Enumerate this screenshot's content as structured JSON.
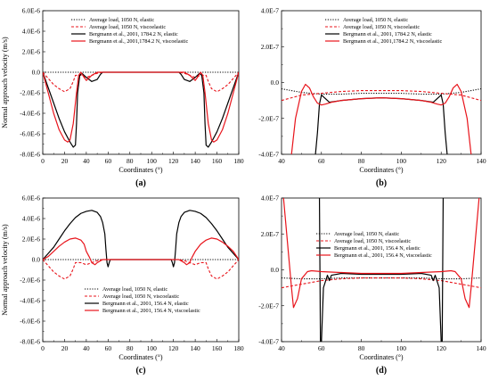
{
  "chart_data": [
    {
      "panel": "(a)",
      "type": "line",
      "xlabel": "Coordinates (°)",
      "ylabel": "Normal approach velocity (m/s)",
      "xlim": [
        0,
        180
      ],
      "ylim": [
        -8e-06,
        6e-06
      ],
      "xticks": [
        "0",
        "20",
        "40",
        "60",
        "80",
        "100",
        "120",
        "140",
        "160",
        "180"
      ],
      "yticks": [
        "6.0E-6",
        "4.0E-6",
        "2.0E-6",
        "0.0",
        "-2.0E-6",
        "-4.0E-6",
        "-6.0E-6",
        "-8.0E-6"
      ],
      "legend_position": "top-right",
      "series": [
        {
          "name": "Average load, 1050 N, elastic",
          "color": "#000000",
          "dash": "dotted",
          "x": [
            0,
            20,
            40,
            60,
            80,
            100,
            120,
            140,
            160,
            180
          ],
          "y": [
            0,
            0,
            0,
            0,
            0,
            0,
            0,
            0,
            0,
            0
          ]
        },
        {
          "name": "Average load, 1050 N, viscoelastic",
          "color": "#e8141b",
          "dash": "dashed",
          "x": [
            0,
            5,
            10,
            15,
            20,
            25,
            28,
            30,
            35,
            40,
            45,
            50,
            55,
            60,
            65,
            70,
            110,
            115,
            120,
            125,
            130,
            135,
            140,
            145,
            150,
            152,
            155,
            160,
            165,
            170,
            175,
            180
          ],
          "y": [
            0,
            -6e-07,
            -1.2e-06,
            -1.6e-06,
            -1.9e-06,
            -1.6e-06,
            -9e-07,
            -3e-07,
            -3e-07,
            -5e-07,
            -3e-07,
            -1e-07,
            0,
            0,
            0,
            0,
            0,
            0,
            0,
            0,
            -1e-07,
            -3e-07,
            -5e-07,
            -3e-07,
            -3e-07,
            -9e-07,
            -1.6e-06,
            -1.9e-06,
            -1.6e-06,
            -1.2e-06,
            -6e-07,
            0
          ]
        },
        {
          "name": "Bergmann et al., 2001, 1784.2 N, elastic",
          "color": "#000000",
          "dash": "solid",
          "x": [
            0,
            5,
            10,
            15,
            20,
            25,
            28,
            30,
            31,
            32,
            34,
            36,
            40,
            45,
            50,
            53,
            55,
            60,
            120,
            125,
            127,
            130,
            135,
            140,
            144,
            146,
            148,
            149,
            150,
            152,
            155,
            160,
            165,
            170,
            175,
            180
          ],
          "y": [
            0,
            -1.5e-06,
            -3e-06,
            -4.5e-06,
            -5.8e-06,
            -6.8e-06,
            -7.3e-06,
            -7.1e-06,
            -5e-06,
            -2e-06,
            -3e-07,
            -1e-07,
            -5e-07,
            -9e-07,
            -7e-07,
            -2e-07,
            0,
            0,
            0,
            0,
            -2e-07,
            -7e-07,
            -9e-07,
            -5e-07,
            -1e-07,
            -3e-07,
            -2e-06,
            -5e-06,
            -7.1e-06,
            -7.3e-06,
            -6.8e-06,
            -5.8e-06,
            -4.5e-06,
            -3e-06,
            -1.5e-06,
            0
          ]
        },
        {
          "name": "Bergmann et al., 2001,1784.2 N, viscoelastic",
          "color": "#e8141b",
          "dash": "solid",
          "x": [
            0,
            5,
            10,
            15,
            20,
            23,
            25,
            28,
            31,
            33,
            35,
            38,
            40,
            45,
            50,
            55,
            60,
            120,
            125,
            130,
            135,
            140,
            142,
            145,
            147,
            149,
            152,
            155,
            157,
            160,
            165,
            170,
            175,
            180
          ],
          "y": [
            0,
            -2e-06,
            -4e-06,
            -5.6e-06,
            -6.6e-06,
            -6.8e-06,
            -6.6e-06,
            -5e-06,
            -2e-06,
            -3e-07,
            0,
            -5e-07,
            -8e-07,
            -3e-07,
            0,
            0,
            0,
            0,
            0,
            0,
            -3e-07,
            -8e-07,
            -5e-07,
            0,
            -3e-07,
            -2e-06,
            -5e-06,
            -6.6e-06,
            -6.8e-06,
            -6.6e-06,
            -5.6e-06,
            -4e-06,
            -2e-06,
            0
          ]
        }
      ]
    },
    {
      "panel": "(b)",
      "type": "line",
      "xlabel": "Coordinates (°)",
      "ylabel": "",
      "xlim": [
        40,
        140
      ],
      "ylim": [
        -4e-07,
        4e-07
      ],
      "xticks": [
        "40",
        "60",
        "80",
        "100",
        "120",
        "140"
      ],
      "yticks": [
        "4.0E-7",
        "2.0E-7",
        "0.0",
        "-2.0E-7",
        "-4.0E-7"
      ],
      "legend_position": "top-right",
      "series": [
        {
          "name": "Average load, 1050 N, elastic",
          "color": "#000000",
          "dash": "dotted",
          "x": [
            40,
            45,
            50,
            60,
            70,
            80,
            90,
            100,
            110,
            120,
            130,
            135,
            140
          ],
          "y": [
            -3.5e-08,
            -4.5e-08,
            -5.5e-08,
            -6.5e-08,
            -6.5e-08,
            -6e-08,
            -6e-08,
            -6e-08,
            -6.5e-08,
            -6.5e-08,
            -5.5e-08,
            -4.5e-08,
            -3.5e-08
          ]
        },
        {
          "name": "Average load, 1050 N, viscoelastic",
          "color": "#e8141b",
          "dash": "dashed",
          "x": [
            40,
            45,
            50,
            60,
            70,
            80,
            90,
            100,
            110,
            120,
            130,
            135,
            140
          ],
          "y": [
            -1e-07,
            -8.5e-08,
            -7e-08,
            -6e-08,
            -5e-08,
            -4.5e-08,
            -4.5e-08,
            -4.5e-08,
            -5e-08,
            -6e-08,
            -7e-08,
            -8.5e-08,
            -1e-07
          ]
        },
        {
          "name": "Bergmann et al., 2001, 1784.2 N, elastic",
          "color": "#000000",
          "dash": "solid",
          "x": [
            57,
            58,
            59,
            60,
            62,
            64,
            70,
            80,
            90,
            100,
            110,
            116,
            118,
            120,
            121,
            122,
            123
          ],
          "y": [
            -4e-07,
            -2.8e-07,
            -1.2e-07,
            -7e-08,
            -9e-08,
            -1.1e-07,
            -1e-07,
            -9e-08,
            -8.5e-08,
            -9e-08,
            -1e-07,
            -1.1e-07,
            -9e-08,
            -7e-08,
            -1.2e-07,
            -2.8e-07,
            -4e-07
          ]
        },
        {
          "name": "Bergmann et al., 2001,1784.2 N, viscoelastic",
          "color": "#e8141b",
          "dash": "solid",
          "x": [
            45,
            47,
            50,
            52,
            54,
            56,
            58,
            60,
            62,
            65,
            70,
            80,
            90,
            100,
            110,
            115,
            118,
            120,
            122,
            124,
            126,
            128,
            130,
            133,
            135
          ],
          "y": [
            -4e-07,
            -2e-07,
            -5e-08,
            -1e-08,
            -3e-08,
            -8e-08,
            -1.15e-07,
            -1.25e-07,
            -1.2e-07,
            -1.1e-07,
            -1e-07,
            -9e-08,
            -8.5e-08,
            -9e-08,
            -1e-07,
            -1.1e-07,
            -1.2e-07,
            -1.25e-07,
            -1.15e-07,
            -8e-08,
            -3e-08,
            -1e-08,
            -5e-08,
            -2e-07,
            -4e-07
          ]
        }
      ]
    },
    {
      "panel": "(c)",
      "type": "line",
      "xlabel": "Coordinates (°)",
      "ylabel": "Normal approach velocity (m/s)",
      "xlim": [
        0,
        180
      ],
      "ylim": [
        -8e-06,
        6e-06
      ],
      "xticks": [
        "0",
        "20",
        "40",
        "60",
        "80",
        "100",
        "120",
        "140",
        "160",
        "180"
      ],
      "yticks": [
        "6.0E-6",
        "4.0E-6",
        "2.0E-6",
        "0.0",
        "-2.0E-6",
        "-4.0E-6",
        "-6.0E-6",
        "-8.0E-6"
      ],
      "legend_position": "bottom-right",
      "series": [
        {
          "name": "Average load, 1050 N, elastic",
          "color": "#000000",
          "dash": "dotted",
          "x": [
            0,
            20,
            40,
            60,
            80,
            100,
            120,
            140,
            160,
            180
          ],
          "y": [
            0,
            0,
            0,
            0,
            0,
            0,
            0,
            0,
            0,
            0
          ]
        },
        {
          "name": "Average load, 1050 N, viscoelastic",
          "color": "#e8141b",
          "dash": "dashed",
          "x": [
            0,
            5,
            10,
            15,
            20,
            25,
            28,
            30,
            35,
            40,
            45,
            50,
            55,
            60,
            65,
            70,
            110,
            115,
            120,
            125,
            130,
            135,
            140,
            145,
            150,
            152,
            155,
            160,
            165,
            170,
            175,
            180
          ],
          "y": [
            0,
            -6e-07,
            -1.2e-06,
            -1.6e-06,
            -1.9e-06,
            -1.6e-06,
            -9e-07,
            -3e-07,
            -3e-07,
            -5e-07,
            -3e-07,
            -1e-07,
            0,
            0,
            0,
            0,
            0,
            0,
            0,
            0,
            -1e-07,
            -3e-07,
            -5e-07,
            -3e-07,
            -3e-07,
            -9e-07,
            -1.6e-06,
            -1.9e-06,
            -1.6e-06,
            -1.2e-06,
            -6e-07,
            0
          ]
        },
        {
          "name": "Bergmann et al., 2001, 156.4 N, elastic",
          "color": "#000000",
          "dash": "solid",
          "x": [
            0,
            5,
            10,
            15,
            20,
            25,
            30,
            35,
            40,
            45,
            50,
            53,
            55,
            57,
            58,
            59,
            60,
            61,
            62,
            65,
            115,
            118,
            119,
            120,
            121,
            122,
            123,
            125,
            127,
            130,
            135,
            140,
            145,
            150,
            155,
            160,
            165,
            170,
            175,
            180
          ],
          "y": [
            0,
            6e-07,
            1.2e-06,
            2e-06,
            2.8e-06,
            3.5e-06,
            4.1e-06,
            4.5e-06,
            4.7e-06,
            4.8e-06,
            4.6e-06,
            4.2e-06,
            3.6e-06,
            2.5e-06,
            1e-06,
            -3e-07,
            -7e-07,
            -3e-07,
            0,
            0,
            0,
            0,
            -3e-07,
            -7e-07,
            -3e-07,
            1e-06,
            2.5e-06,
            3.6e-06,
            4.2e-06,
            4.6e-06,
            4.8e-06,
            4.7e-06,
            4.5e-06,
            4.1e-06,
            3.5e-06,
            2.8e-06,
            2e-06,
            1.2e-06,
            6e-07,
            0
          ]
        },
        {
          "name": "Bergmann et al., 2001, 156.4 N, viscoelastic",
          "color": "#e8141b",
          "dash": "solid",
          "x": [
            0,
            5,
            10,
            15,
            20,
            25,
            30,
            35,
            38,
            40,
            43,
            45,
            48,
            50,
            55,
            60,
            120,
            125,
            130,
            132,
            135,
            137,
            140,
            145,
            150,
            155,
            160,
            165,
            170,
            175,
            180
          ],
          "y": [
            0,
            3e-07,
            8e-07,
            1.3e-06,
            1.7e-06,
            2e-06,
            2.1e-06,
            1.9e-06,
            1.5e-06,
            8e-07,
            2e-07,
            -3e-07,
            -5e-07,
            -3e-07,
            0,
            0,
            0,
            0,
            -3e-07,
            -5e-07,
            -3e-07,
            2e-07,
            8e-07,
            1.5e-06,
            1.9e-06,
            2.1e-06,
            2e-06,
            1.7e-06,
            1.3e-06,
            8e-07,
            0
          ]
        }
      ]
    },
    {
      "panel": "(d)",
      "type": "line",
      "xlabel": "Coordinates (°)",
      "ylabel": "",
      "xlim": [
        40,
        140
      ],
      "ylim": [
        -4e-07,
        4e-07
      ],
      "xticks": [
        "40",
        "60",
        "80",
        "100",
        "120",
        "140"
      ],
      "yticks": [
        "4.0E-7",
        "2.0E-7",
        "0.0",
        "-2.0E-7",
        "-4.0E-7"
      ],
      "legend_position": "top-center",
      "series": [
        {
          "name": "Average load, 1050 N, elastic",
          "color": "#000000",
          "dash": "dotted",
          "x": [
            40,
            50,
            60,
            70,
            80,
            90,
            100,
            110,
            120,
            130,
            140
          ],
          "y": [
            -4.5e-08,
            -5e-08,
            -5e-08,
            -4.5e-08,
            -4.5e-08,
            -4.5e-08,
            -4.5e-08,
            -4.5e-08,
            -5e-08,
            -5e-08,
            -4.5e-08
          ]
        },
        {
          "name": "Average load, 1050 N, viscoelastic",
          "color": "#e8141b",
          "dash": "dashed",
          "x": [
            40,
            45,
            50,
            60,
            70,
            80,
            90,
            100,
            110,
            120,
            130,
            135,
            140
          ],
          "y": [
            -1e-07,
            -9e-08,
            -8e-08,
            -6e-08,
            -5e-08,
            -4.5e-08,
            -4.5e-08,
            -4.5e-08,
            -5e-08,
            -6e-08,
            -8e-08,
            -9e-08,
            -1e-07
          ]
        },
        {
          "name": "Bergmann et al., 2001, 156.4 N, elastic",
          "color": "#000000",
          "dash": "solid",
          "x": [
            59,
            59.5,
            60,
            61,
            63,
            64,
            65,
            70,
            80,
            90,
            100,
            110,
            115,
            116,
            117,
            119,
            120,
            120.5,
            121
          ],
          "y": [
            4e-07,
            -4e-07,
            -4e-07,
            -1e-07,
            -3e-08,
            -6e-08,
            -3e-08,
            -2e-08,
            -2.5e-08,
            -2.5e-08,
            -2.5e-08,
            -2e-08,
            -3e-08,
            -6e-08,
            -3e-08,
            -1e-07,
            -4e-07,
            -4e-07,
            4e-07
          ]
        },
        {
          "name": "Bergmann et al., 2001, 156.4 N, viscoelastic",
          "color": "#e8141b",
          "dash": "solid",
          "x": [
            41,
            43,
            45,
            46,
            48,
            50,
            53,
            55,
            60,
            70,
            80,
            90,
            100,
            110,
            120,
            125,
            127,
            130,
            132,
            134,
            135,
            137,
            139
          ],
          "y": [
            4e-07,
            1.5e-07,
            -1e-07,
            -2.1e-07,
            -1.6e-07,
            -5e-08,
            -1e-08,
            -5e-09,
            -1e-08,
            -1.5e-08,
            -2e-08,
            -2e-08,
            -2e-08,
            -1.5e-08,
            -1e-08,
            -5e-09,
            -1e-08,
            -5e-08,
            -1.6e-07,
            -2.1e-07,
            -1e-07,
            1.5e-07,
            4e-07
          ]
        }
      ]
    }
  ]
}
